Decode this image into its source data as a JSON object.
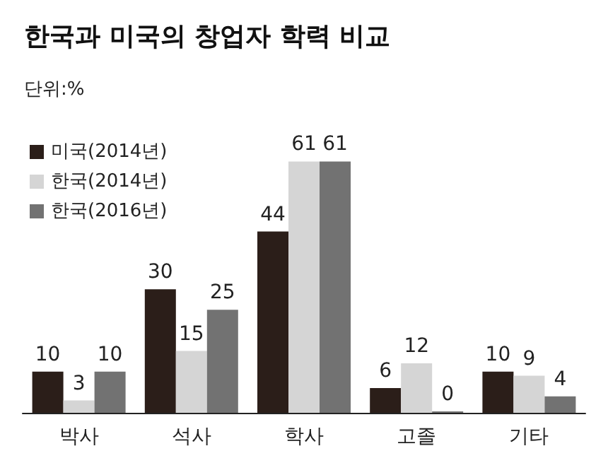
{
  "chart_data": {
    "type": "bar",
    "title": "한국과 미국의 창업자 학력 비교",
    "subtitle": "단위:%",
    "categories": [
      "박사",
      "석사",
      "학사",
      "고졸",
      "기타"
    ],
    "series": [
      {
        "name": "미국(2014년)",
        "color": "#2b1e19",
        "values": [
          10,
          30,
          44,
          6,
          10
        ]
      },
      {
        "name": "한국(2014년)",
        "color": "#d5d5d5",
        "values": [
          3,
          15,
          61,
          12,
          9
        ]
      },
      {
        "name": "한국(2016년)",
        "color": "#727272",
        "values": [
          10,
          25,
          61,
          0,
          4
        ]
      }
    ],
    "data_labels": true,
    "legend": "top left"
  }
}
